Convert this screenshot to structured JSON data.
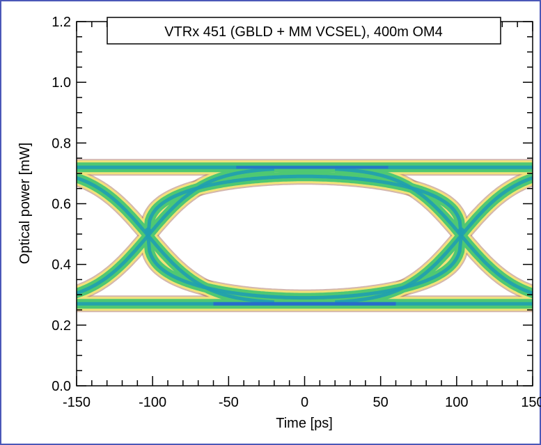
{
  "chart_data": {
    "type": "eye-diagram",
    "title": "VTRx 451 (GBLD + MM VCSEL), 400m OM4",
    "xlabel": "Time [ps]",
    "ylabel": "Optical power [mW]",
    "xlim": [
      -150,
      150
    ],
    "ylim": [
      0.0,
      1.2
    ],
    "x_ticks": [
      -150,
      -100,
      -50,
      0,
      50,
      100,
      150
    ],
    "x_tick_labels": [
      "-150",
      "-100",
      "-50",
      "0",
      "50",
      "100",
      "150"
    ],
    "y_ticks": [
      0.0,
      0.2,
      0.4,
      0.6,
      0.8,
      1.0,
      1.2
    ],
    "y_tick_labels": [
      "0.0",
      "0.2",
      "0.4",
      "0.6",
      "0.8",
      "1.0",
      "1.2"
    ],
    "grid": false,
    "legend": "none",
    "levels": {
      "high_mW": 0.72,
      "low_mW": 0.27
    },
    "crossings": [
      {
        "x_ps": -103,
        "y_mW": 0.51
      },
      {
        "x_ps": 103,
        "y_mW": 0.51
      }
    ],
    "eye_opening": {
      "top_mW": 0.69,
      "bottom_mW": 0.29
    },
    "colors": {
      "frame": "#4a58b8",
      "trace_edge": "#b07a6a",
      "trace_outer": "#f2e27a",
      "trace_mid": "#4fc872",
      "trace_core": "#1f9fb0",
      "trace_peak": "#2a56d8"
    }
  }
}
